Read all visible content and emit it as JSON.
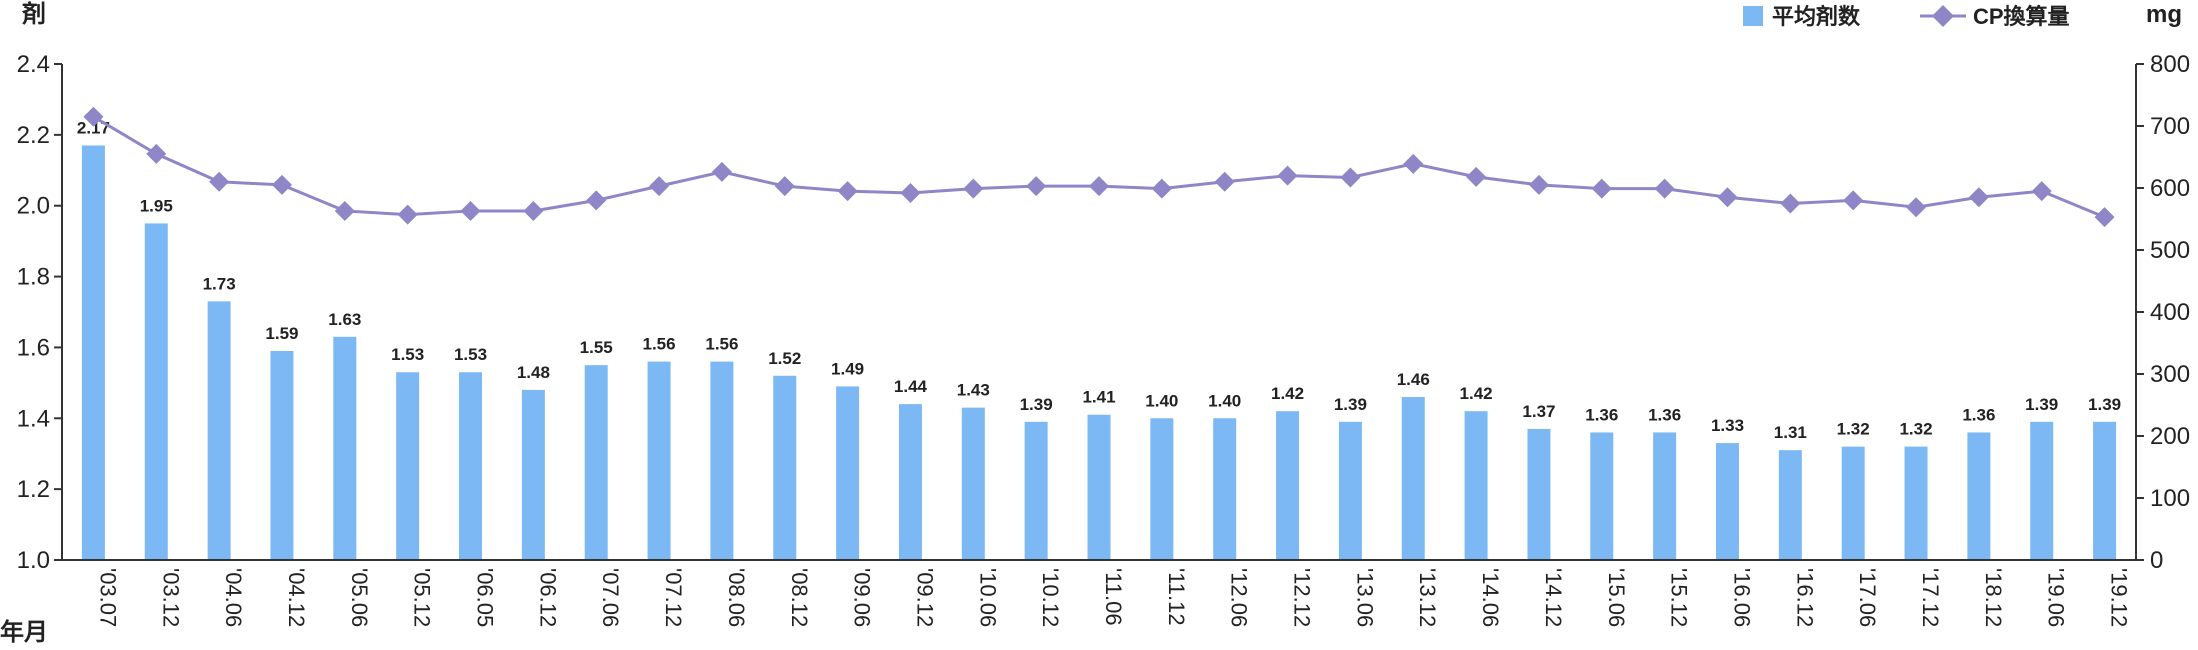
{
  "chart_data": {
    "type": "bar",
    "categories": [
      "'03.07",
      "'03.12",
      "'04.06",
      "'04.12",
      "'05.06",
      "'05.12",
      "'06.05",
      "'06.12",
      "'07.06",
      "'07.12",
      "'08.06",
      "'08.12",
      "'09.06",
      "'09.12",
      "'10.06",
      "'10.12",
      "'11.06",
      "'11.12",
      "'12.06",
      "'12.12",
      "'13.06",
      "'13.12",
      "'14.06",
      "'14.12",
      "'15.06",
      "'15.12",
      "'16.06",
      "'16.12",
      "'17.06",
      "'17.12",
      "'18.12",
      "'19.06",
      "'19.12"
    ],
    "series": [
      {
        "name": "平均剤数",
        "type": "bar",
        "axis": "left",
        "color": "#7cb9f4",
        "values": [
          2.17,
          1.95,
          1.73,
          1.59,
          1.63,
          1.53,
          1.53,
          1.48,
          1.55,
          1.56,
          1.56,
          1.52,
          1.49,
          1.44,
          1.43,
          1.39,
          1.41,
          1.4,
          1.4,
          1.42,
          1.39,
          1.46,
          1.42,
          1.37,
          1.36,
          1.36,
          1.33,
          1.31,
          1.32,
          1.32,
          1.36,
          1.39,
          1.39
        ],
        "labels": [
          "2.17",
          "1.95",
          "1.73",
          "1.59",
          "1.63",
          "1.53",
          "1.53",
          "1.48",
          "1.55",
          "1.56",
          "1.56",
          "1.52",
          "1.49",
          "1.44",
          "1.43",
          "1.39",
          "1.41",
          "1.40",
          "1.40",
          "1.42",
          "1.39",
          "1.46",
          "1.42",
          "1.37",
          "1.36",
          "1.36",
          "1.33",
          "1.31",
          "1.32",
          "1.32",
          "1.36",
          "1.39",
          "1.39"
        ]
      },
      {
        "name": "CP換算量",
        "type": "line",
        "axis": "right",
        "color": "#8e86c6",
        "marker": "diamond",
        "values": [
          715,
          655,
          610,
          605,
          563,
          557,
          563,
          563,
          580,
          603,
          626,
          603,
          595,
          592,
          599,
          603,
          603,
          599,
          610,
          620,
          617,
          639,
          618,
          605,
          599,
          599,
          585,
          575,
          580,
          569,
          585,
          595,
          553
        ]
      }
    ],
    "y_left": {
      "unit": "剤",
      "ylim": [
        1.0,
        2.4
      ],
      "ticks": [
        "1.0",
        "1.2",
        "1.4",
        "1.6",
        "1.8",
        "2.0",
        "2.2",
        "2.4"
      ]
    },
    "y_right": {
      "unit": "mg",
      "ylim": [
        0,
        800
      ],
      "ticks": [
        "0",
        "100",
        "200",
        "300",
        "400",
        "500",
        "600",
        "700",
        "800"
      ]
    },
    "x_unit": "年月",
    "legend": {
      "position": "top-right",
      "items": [
        "平均剤数",
        "CP換算量"
      ]
    },
    "grid": false
  }
}
